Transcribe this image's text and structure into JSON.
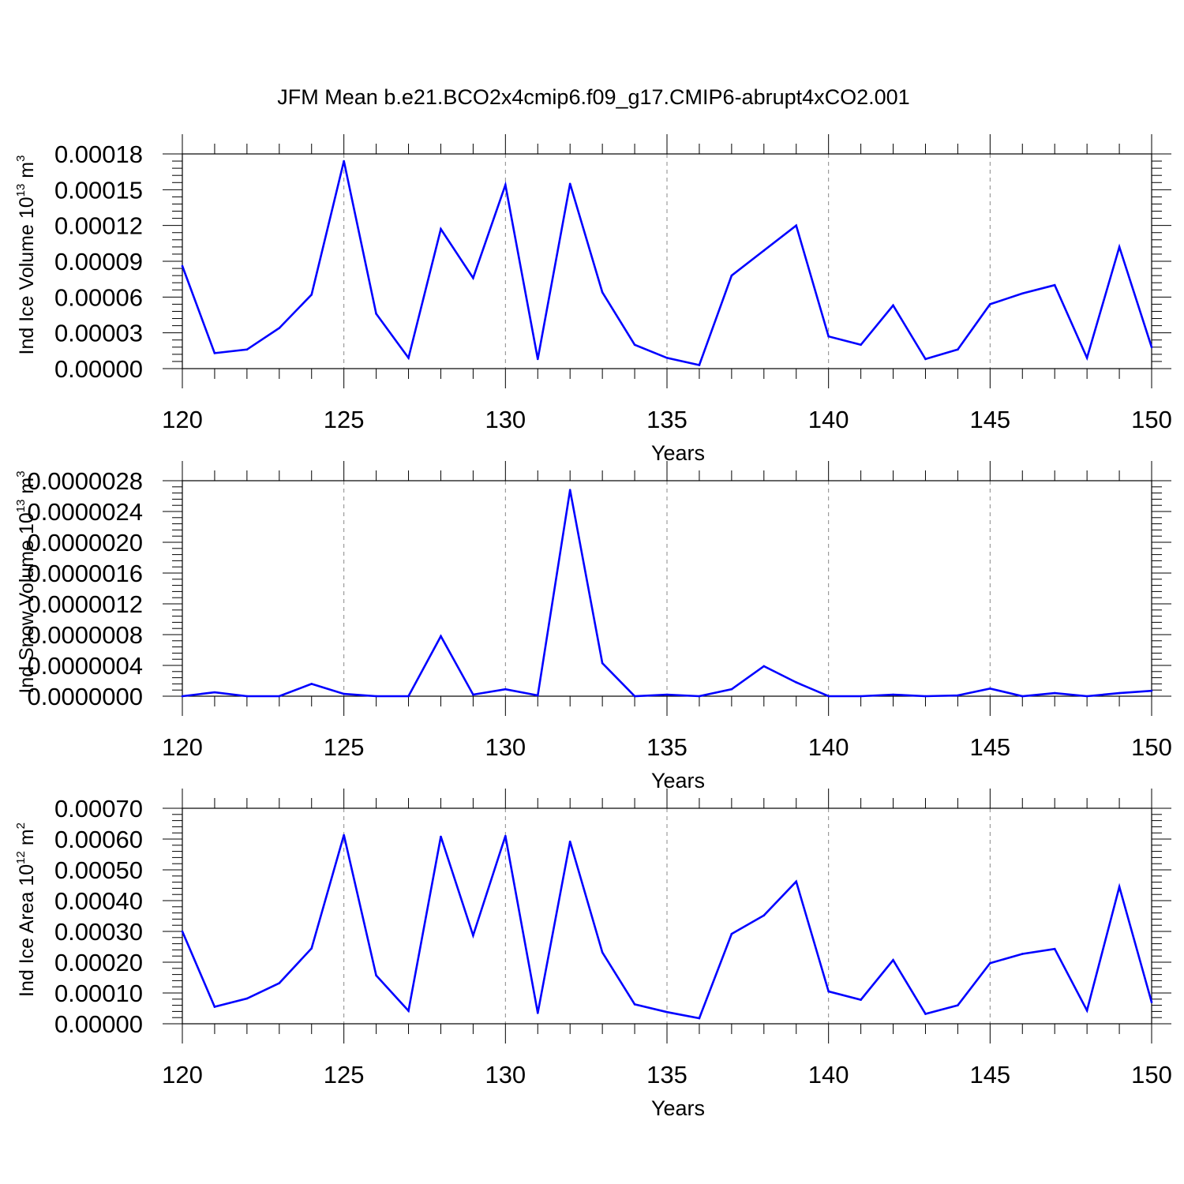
{
  "chart_data": [
    {
      "type": "line",
      "title": "JFM Mean b.e21.BCO2x4cmip6.f09_g17.CMIP6-abrupt4xCO2.001",
      "xlabel": "Years",
      "ylabel": "Ind Ice Volume 10",
      "ylabel_exp": "13",
      "ylabel_unit": " m",
      "ylabel_unit_exp": "3",
      "xlim": [
        120,
        150
      ],
      "ylim": [
        0,
        0.00018
      ],
      "xticks": [
        "120",
        "125",
        "130",
        "135",
        "140",
        "145",
        "150"
      ],
      "yticks": [
        "0.00000",
        "0.00003",
        "0.00006",
        "0.00009",
        "0.00012",
        "0.00015",
        "0.00018"
      ],
      "grid": "dashed vertical at major x ticks",
      "line_color": "#0000ff",
      "x": [
        120,
        121,
        122,
        123,
        124,
        125,
        126,
        127,
        128,
        129,
        130,
        131,
        132,
        133,
        134,
        135,
        136,
        137,
        138,
        139,
        140,
        141,
        142,
        143,
        144,
        145,
        146,
        147,
        148,
        149,
        150
      ],
      "values": [
        8.6e-05,
        1.3e-05,
        1.6e-05,
        3.4e-05,
        6.2e-05,
        0.000174,
        4.6e-05,
        9e-06,
        0.000117,
        7.6e-05,
        0.000154,
        8e-06,
        0.000155,
        6.4e-05,
        2e-05,
        9e-06,
        3e-06,
        7.8e-05,
        9.9e-05,
        0.00012,
        2.7e-05,
        2e-05,
        5.3e-05,
        8e-06,
        1.6e-05,
        5.4e-05,
        6.3e-05,
        7e-05,
        9e-06,
        0.000102,
        1.8e-05
      ]
    },
    {
      "type": "line",
      "xlabel": "Years",
      "ylabel": "Ind Snow Volume 10",
      "ylabel_exp": "13",
      "ylabel_unit": " m",
      "ylabel_unit_exp": "3",
      "xlim": [
        120,
        150
      ],
      "ylim": [
        0,
        2.8e-06
      ],
      "xticks": [
        "120",
        "125",
        "130",
        "135",
        "140",
        "145",
        "150"
      ],
      "yticks": [
        "0.0000000",
        "0.0000004",
        "0.0000008",
        "0.0000012",
        "0.0000016",
        "0.0000020",
        "0.0000024",
        "0.0000028"
      ],
      "grid": "dashed vertical at major x ticks",
      "line_color": "#0000ff",
      "x": [
        120,
        121,
        122,
        123,
        124,
        125,
        126,
        127,
        128,
        129,
        130,
        131,
        132,
        133,
        134,
        135,
        136,
        137,
        138,
        139,
        140,
        141,
        142,
        143,
        144,
        145,
        146,
        147,
        148,
        149,
        150
      ],
      "values": [
        0.0,
        5e-08,
        0.0,
        0.0,
        1.6e-07,
        3e-08,
        0.0,
        0.0,
        7.8e-07,
        2e-08,
        9e-08,
        1e-08,
        2.68e-06,
        4.3e-07,
        0.0,
        2e-08,
        0.0,
        9e-08,
        3.9e-07,
        1.8e-07,
        0.0,
        0.0,
        2e-08,
        0.0,
        1e-08,
        1e-07,
        0.0,
        4e-08,
        0.0,
        4e-08,
        7e-08
      ]
    },
    {
      "type": "line",
      "xlabel": "Years",
      "ylabel": "Ind Ice Area 10",
      "ylabel_exp": "12",
      "ylabel_unit": " m",
      "ylabel_unit_exp": "2",
      "xlim": [
        120,
        150
      ],
      "ylim": [
        0,
        0.0007
      ],
      "xticks": [
        "120",
        "125",
        "130",
        "135",
        "140",
        "145",
        "150"
      ],
      "yticks": [
        "0.00000",
        "0.00010",
        "0.00020",
        "0.00030",
        "0.00040",
        "0.00050",
        "0.00060",
        "0.00070"
      ],
      "grid": "dashed vertical at major x ticks",
      "line_color": "#0000ff",
      "x": [
        120,
        121,
        122,
        123,
        124,
        125,
        126,
        127,
        128,
        129,
        130,
        131,
        132,
        133,
        134,
        135,
        136,
        137,
        138,
        139,
        140,
        141,
        142,
        143,
        144,
        145,
        146,
        147,
        148,
        149,
        150
      ],
      "values": [
        0.0003,
        5.5e-05,
        8.2e-05,
        0.000132,
        0.000245,
        0.000613,
        0.000157,
        4.2e-05,
        0.000608,
        0.000287,
        0.00061,
        3.5e-05,
        0.000592,
        0.000232,
        6.3e-05,
        3.8e-05,
        1.8e-05,
        0.000292,
        0.000352,
        0.000462,
        0.000105,
        7.8e-05,
        0.000207,
        3.2e-05,
        6e-05,
        0.000197,
        0.000227,
        0.000243,
        4.3e-05,
        0.000445,
        7e-05
      ]
    }
  ]
}
